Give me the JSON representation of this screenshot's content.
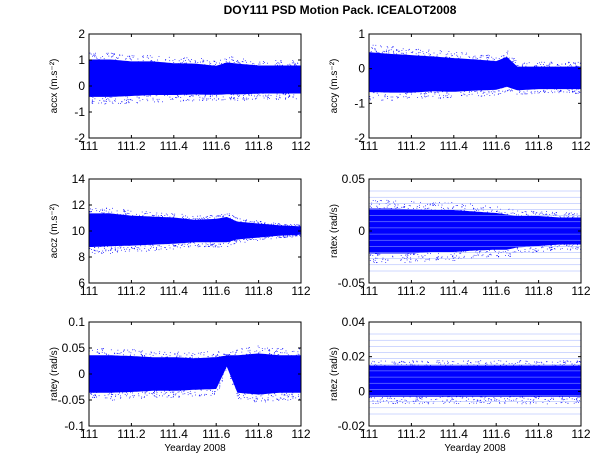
{
  "figure": {
    "title": "DOY111 PSD Motion Pack. ICEALOT2008"
  },
  "chart_data": [
    {
      "type": "scatter",
      "panel": "accx",
      "title": "",
      "xlabel": "",
      "ylabel": "accx (m.s⁻²)",
      "xlim": [
        111,
        112
      ],
      "ylim": [
        -2,
        2
      ],
      "xticks": [
        "111",
        "111.2",
        "111.4",
        "111.6",
        "111.8",
        "112"
      ],
      "yticks": [
        "2",
        "1",
        "0",
        "-1",
        "-2"
      ],
      "grid": false,
      "color": "#0000ff",
      "series": [
        {
          "x": [
            111.0,
            111.1,
            111.2,
            111.3,
            111.4,
            111.5,
            111.6,
            111.65,
            111.7,
            111.8,
            111.9,
            112.0
          ],
          "y_center": [
            0.3,
            0.3,
            0.3,
            0.3,
            0.3,
            0.25,
            0.2,
            0.15,
            0.25,
            0.25,
            0.25,
            0.25
          ],
          "y_min": [
            -0.7,
            -0.7,
            -0.65,
            -0.6,
            -0.6,
            -0.55,
            -0.55,
            -0.5,
            -0.55,
            -0.5,
            -0.5,
            -0.5
          ],
          "y_max": [
            1.3,
            1.3,
            1.2,
            1.2,
            1.1,
            1.1,
            1.0,
            1.2,
            1.1,
            1.0,
            1.0,
            1.0
          ]
        }
      ]
    },
    {
      "type": "scatter",
      "panel": "accy",
      "title": "",
      "xlabel": "",
      "ylabel": "accy (m.s⁻²)",
      "xlim": [
        111,
        112
      ],
      "ylim": [
        -2,
        1
      ],
      "xticks": [
        "111",
        "111.2",
        "111.4",
        "111.6",
        "111.8",
        "112"
      ],
      "yticks": [
        "1",
        "0",
        "-1",
        "-2"
      ],
      "grid": false,
      "color": "#0000ff",
      "series": [
        {
          "x": [
            111.0,
            111.1,
            111.2,
            111.3,
            111.4,
            111.5,
            111.6,
            111.65,
            111.7,
            111.8,
            111.9,
            112.0
          ],
          "y_center": [
            -0.1,
            -0.15,
            -0.15,
            -0.15,
            -0.2,
            -0.2,
            -0.25,
            -0.2,
            -0.3,
            -0.3,
            -0.3,
            -0.3
          ],
          "y_min": [
            -0.9,
            -0.9,
            -0.9,
            -0.85,
            -0.85,
            -0.8,
            -0.75,
            -0.65,
            -0.75,
            -0.7,
            -0.7,
            -0.7
          ],
          "y_max": [
            0.7,
            0.65,
            0.6,
            0.55,
            0.5,
            0.45,
            0.4,
            0.55,
            0.2,
            0.2,
            0.2,
            0.2
          ]
        }
      ]
    },
    {
      "type": "scatter",
      "panel": "accz",
      "title": "",
      "xlabel": "",
      "ylabel": "accz (m.s⁻²)",
      "xlim": [
        111,
        112
      ],
      "ylim": [
        6,
        14
      ],
      "xticks": [
        "111",
        "111.2",
        "111.4",
        "111.6",
        "111.8",
        "112"
      ],
      "yticks": [
        "14",
        "12",
        "10",
        "8",
        "6"
      ],
      "grid": false,
      "color": "#0000ff",
      "series": [
        {
          "x": [
            111.0,
            111.1,
            111.2,
            111.3,
            111.4,
            111.5,
            111.6,
            111.65,
            111.7,
            111.8,
            111.9,
            112.0
          ],
          "y_center": [
            10.2,
            10.2,
            10.1,
            10.1,
            10.1,
            10.0,
            10.0,
            10.0,
            10.0,
            10.0,
            10.0,
            10.0
          ],
          "y_min": [
            8.2,
            8.3,
            8.4,
            8.5,
            8.6,
            8.8,
            8.8,
            8.8,
            9.1,
            9.3,
            9.5,
            9.6
          ],
          "y_max": [
            11.8,
            11.8,
            11.6,
            11.5,
            11.4,
            11.2,
            11.3,
            11.5,
            11.0,
            10.8,
            10.6,
            10.5
          ]
        }
      ]
    },
    {
      "type": "scatter",
      "panel": "ratex",
      "title": "",
      "xlabel": "",
      "ylabel": "ratex (rad/s)",
      "xlim": [
        111,
        112
      ],
      "ylim": [
        -0.05,
        0.05
      ],
      "xticks": [
        "111",
        "111.2",
        "111.4",
        "111.6",
        "111.8",
        "112"
      ],
      "yticks": [
        "0.05",
        "0",
        "-0.05"
      ],
      "grid": false,
      "color": "#0000ff",
      "series": [
        {
          "x": [
            111.0,
            111.1,
            111.2,
            111.3,
            111.4,
            111.5,
            111.6,
            111.65,
            111.7,
            111.8,
            111.9,
            112.0
          ],
          "y_center": [
            0,
            0,
            0,
            0,
            0,
            0,
            0,
            0,
            0,
            0,
            0,
            0
          ],
          "y_min": [
            -0.03,
            -0.03,
            -0.03,
            -0.028,
            -0.028,
            -0.026,
            -0.025,
            -0.025,
            -0.022,
            -0.02,
            -0.018,
            -0.018
          ],
          "y_max": [
            0.03,
            0.03,
            0.029,
            0.028,
            0.028,
            0.026,
            0.024,
            0.022,
            0.02,
            0.02,
            0.018,
            0.018
          ]
        }
      ]
    },
    {
      "type": "scatter",
      "panel": "ratey",
      "title": "",
      "xlabel": "Yearday 2008",
      "ylabel": "ratey (rad/s)",
      "xlim": [
        111,
        112
      ],
      "ylim": [
        -0.1,
        0.1
      ],
      "xticks": [
        "111",
        "111.2",
        "111.4",
        "111.6",
        "111.8",
        "112"
      ],
      "yticks": [
        "0.1",
        "0.05",
        "0",
        "-0.05",
        "-0.1"
      ],
      "grid": false,
      "color": "#0000ff",
      "series": [
        {
          "x": [
            111.0,
            111.1,
            111.2,
            111.3,
            111.4,
            111.5,
            111.6,
            111.65,
            111.7,
            111.8,
            111.9,
            112.0
          ],
          "y_center": [
            0,
            0,
            0,
            0,
            0,
            0,
            0,
            0.025,
            0,
            0,
            0,
            0
          ],
          "y_min": [
            -0.05,
            -0.05,
            -0.048,
            -0.045,
            -0.045,
            -0.042,
            -0.04,
            0.01,
            -0.05,
            -0.055,
            -0.05,
            -0.05
          ],
          "y_max": [
            0.05,
            0.05,
            0.048,
            0.045,
            0.045,
            0.042,
            0.045,
            0.04,
            0.05,
            0.055,
            0.05,
            0.05
          ]
        }
      ]
    },
    {
      "type": "scatter",
      "panel": "ratez",
      "title": "",
      "xlabel": "Yearday 2008",
      "ylabel": "ratez (rad/s)",
      "xlim": [
        111,
        112
      ],
      "ylim": [
        -0.02,
        0.04
      ],
      "xticks": [
        "111",
        "111.2",
        "111.4",
        "111.6",
        "111.8",
        "112"
      ],
      "yticks": [
        "0.04",
        "0.02",
        "0",
        "-0.02"
      ],
      "grid": false,
      "color": "#0000ff",
      "series": [
        {
          "x": [
            111.0,
            111.1,
            111.2,
            111.3,
            111.4,
            111.5,
            111.6,
            111.65,
            111.7,
            111.8,
            111.9,
            112.0
          ],
          "y_center": [
            0.007,
            0.007,
            0.007,
            0.007,
            0.007,
            0.007,
            0.007,
            0.007,
            0.007,
            0.007,
            0.007,
            0.007
          ],
          "y_min": [
            -0.007,
            -0.007,
            -0.007,
            -0.007,
            -0.007,
            -0.007,
            -0.007,
            -0.007,
            -0.007,
            -0.007,
            -0.007,
            -0.007
          ],
          "y_max": [
            0.018,
            0.018,
            0.018,
            0.018,
            0.018,
            0.018,
            0.018,
            0.018,
            0.018,
            0.018,
            0.018,
            0.018
          ]
        }
      ]
    }
  ]
}
